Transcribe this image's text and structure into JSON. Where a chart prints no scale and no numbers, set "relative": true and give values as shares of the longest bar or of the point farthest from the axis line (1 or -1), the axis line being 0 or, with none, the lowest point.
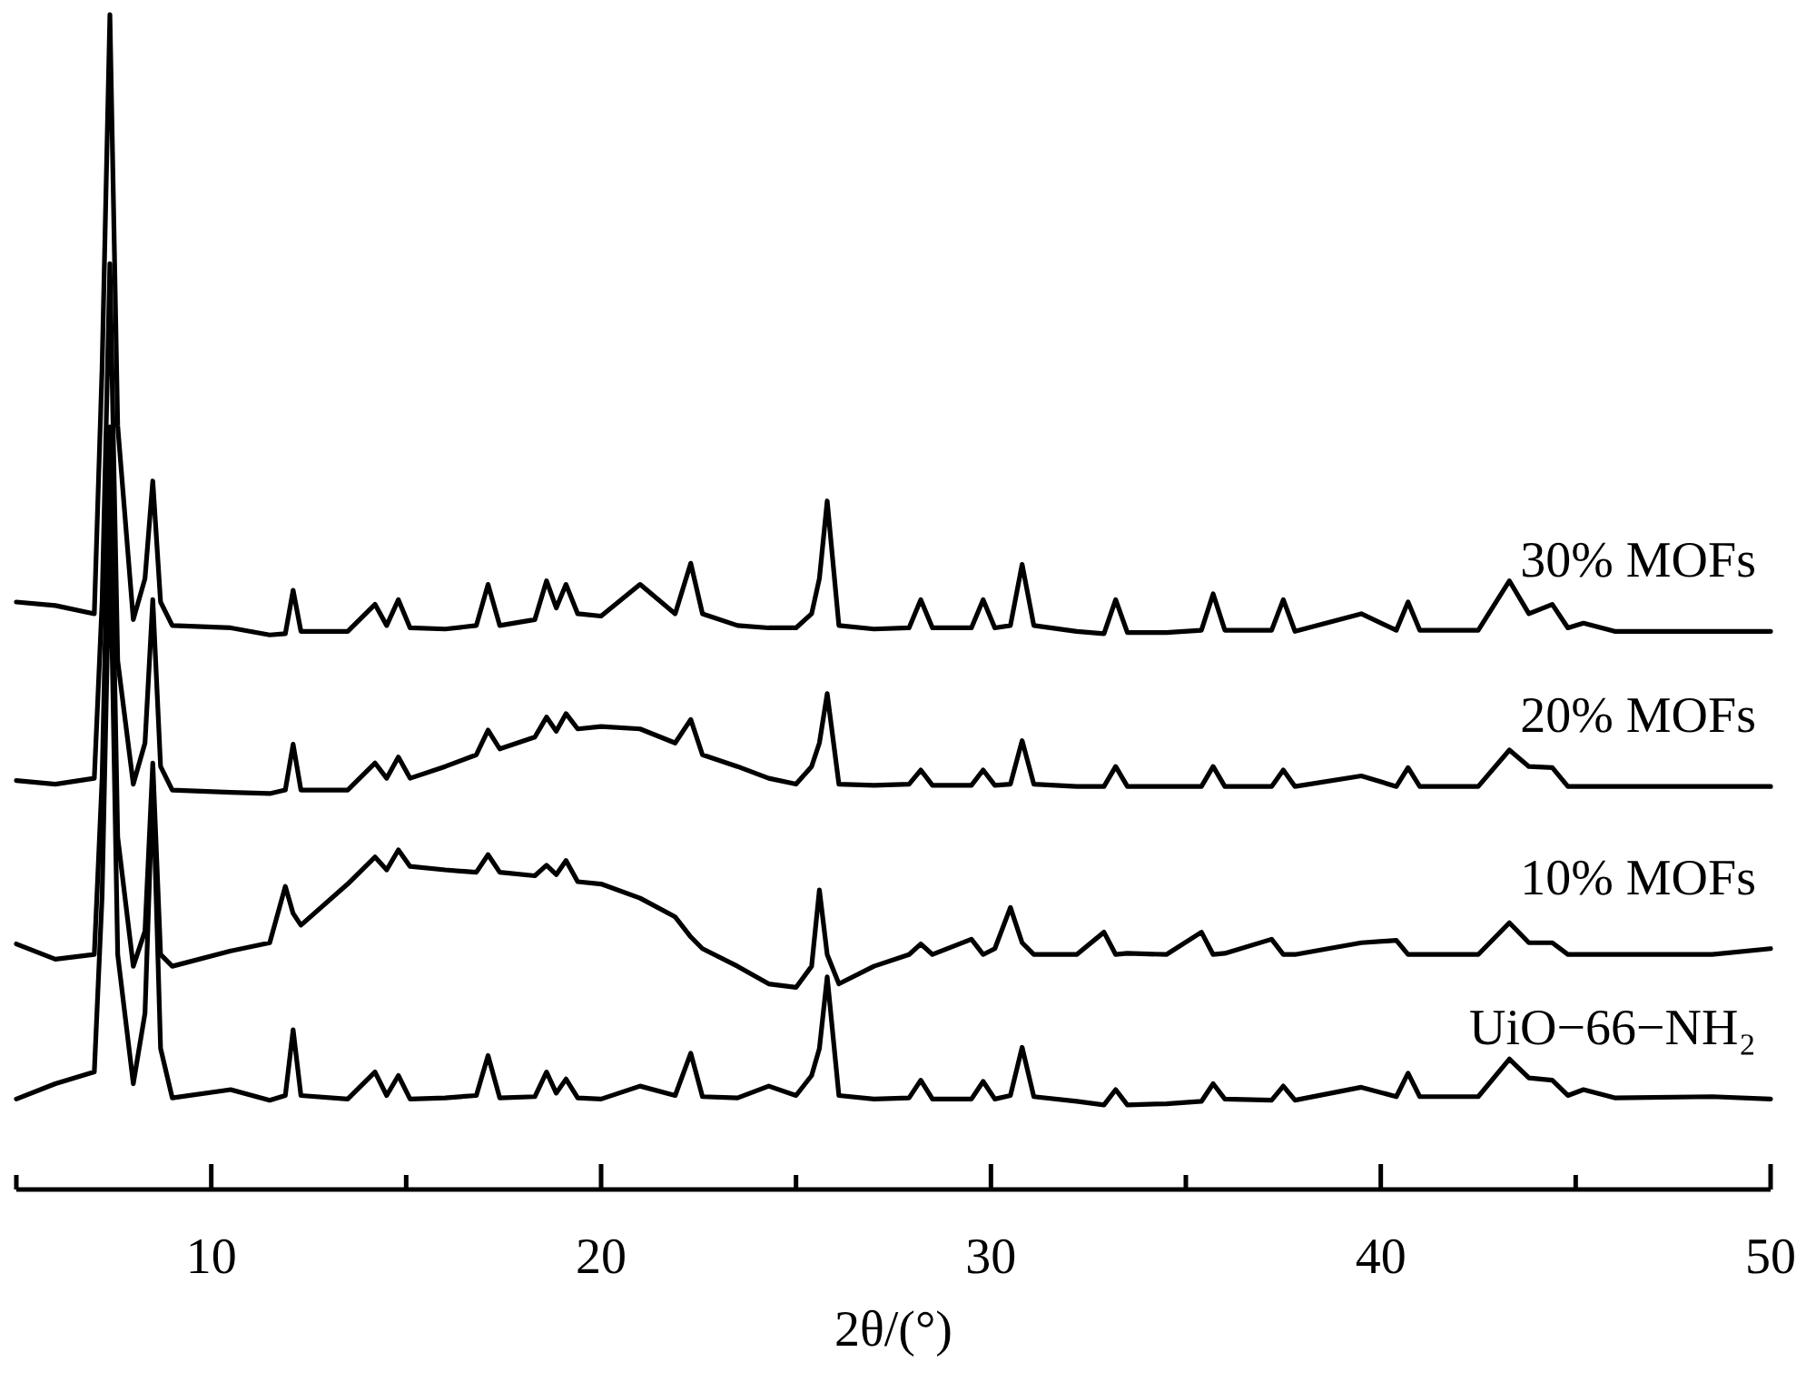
{
  "chart_data": {
    "type": "line",
    "relative": true,
    "xlabel": "2θ/(°)",
    "xlim": [
      5,
      50
    ],
    "xticks": [
      {
        "value": 5,
        "label": null
      },
      10,
      {
        "value": 15,
        "label": null
      },
      20,
      {
        "value": 25,
        "label": null
      },
      30,
      {
        "value": 35,
        "label": null
      },
      40,
      {
        "value": 45,
        "label": null
      },
      50
    ],
    "x": [
      5,
      6,
      7,
      7.2,
      7.4,
      7.6,
      8,
      8.3,
      8.5,
      8.7,
      9,
      10.5,
      11.5,
      11.9,
      12.1,
      12.3,
      13.5,
      14.2,
      14.5,
      14.8,
      15.1,
      16,
      16.8,
      17.1,
      17.4,
      18.3,
      18.6,
      18.85,
      19.1,
      19.4,
      20,
      21,
      21.9,
      22.3,
      22.6,
      23.5,
      24.3,
      25,
      25.4,
      25.6,
      25.8,
      26.1,
      27,
      27.9,
      28.2,
      28.5,
      29.5,
      29.8,
      30.1,
      30.5,
      30.8,
      31.1,
      32.2,
      32.9,
      33.2,
      33.5,
      34.5,
      35.4,
      35.7,
      36,
      37.2,
      37.5,
      37.8,
      39.5,
      40.4,
      40.7,
      41,
      42.5,
      43.3,
      43.8,
      44.4,
      44.8,
      45.2,
      46,
      48.5,
      50
    ],
    "legend": false,
    "grid": false,
    "line_style": "solid",
    "marker": "none",
    "series": [
      {
        "name": "30% MOFs",
        "color": "#000000",
        "values": [
          0.5,
          0.497,
          0.49,
          0.7,
          1.0,
          0.65,
          0.485,
          0.52,
          0.603,
          0.5,
          0.48,
          0.478,
          0.472,
          0.473,
          0.51,
          0.475,
          0.475,
          0.498,
          0.48,
          0.502,
          0.478,
          0.477,
          0.48,
          0.515,
          0.48,
          0.485,
          0.518,
          0.495,
          0.515,
          0.49,
          0.488,
          0.515,
          0.49,
          0.533,
          0.49,
          0.48,
          0.478,
          0.478,
          0.49,
          0.52,
          0.586,
          0.48,
          0.477,
          0.478,
          0.502,
          0.478,
          0.478,
          0.502,
          0.478,
          0.48,
          0.532,
          0.48,
          0.475,
          0.473,
          0.502,
          0.474,
          0.474,
          0.476,
          0.507,
          0.476,
          0.476,
          0.502,
          0.475,
          0.49,
          0.476,
          0.5,
          0.476,
          0.476,
          0.518,
          0.49,
          0.498,
          0.478,
          0.482,
          0.475,
          0.475,
          0.475
        ]
      },
      {
        "name": "20% MOFs",
        "color": "#000000",
        "values": [
          0.348,
          0.345,
          0.35,
          0.5,
          0.788,
          0.45,
          0.345,
          0.38,
          0.502,
          0.36,
          0.34,
          0.338,
          0.337,
          0.34,
          0.379,
          0.34,
          0.34,
          0.363,
          0.35,
          0.368,
          0.35,
          0.36,
          0.37,
          0.391,
          0.375,
          0.385,
          0.402,
          0.39,
          0.405,
          0.392,
          0.394,
          0.392,
          0.38,
          0.4,
          0.37,
          0.36,
          0.35,
          0.345,
          0.36,
          0.38,
          0.422,
          0.345,
          0.344,
          0.345,
          0.357,
          0.344,
          0.344,
          0.357,
          0.344,
          0.345,
          0.382,
          0.345,
          0.343,
          0.343,
          0.36,
          0.343,
          0.343,
          0.343,
          0.36,
          0.343,
          0.343,
          0.357,
          0.343,
          0.352,
          0.343,
          0.359,
          0.343,
          0.343,
          0.374,
          0.36,
          0.359,
          0.343,
          0.343,
          0.343,
          0.343,
          0.343
        ]
      },
      {
        "name": "10% MOFs",
        "color": "#000000",
        "values": [
          0.209,
          0.196,
          0.2,
          0.35,
          0.649,
          0.3,
          0.19,
          0.22,
          0.363,
          0.2,
          0.19,
          0.203,
          0.21,
          0.258,
          0.235,
          0.225,
          0.26,
          0.283,
          0.272,
          0.289,
          0.275,
          0.272,
          0.27,
          0.285,
          0.27,
          0.267,
          0.276,
          0.268,
          0.28,
          0.262,
          0.26,
          0.248,
          0.232,
          0.215,
          0.205,
          0.19,
          0.175,
          0.172,
          0.19,
          0.255,
          0.2,
          0.175,
          0.19,
          0.2,
          0.209,
          0.2,
          0.213,
          0.2,
          0.205,
          0.24,
          0.21,
          0.2,
          0.2,
          0.219,
          0.2,
          0.201,
          0.2,
          0.219,
          0.2,
          0.201,
          0.213,
          0.2,
          0.2,
          0.21,
          0.212,
          0.2,
          0.2,
          0.2,
          0.227,
          0.21,
          0.21,
          0.2,
          0.2,
          0.2,
          0.2,
          0.205
        ]
      },
      {
        "name": "UiO−66−NH₂",
        "color": "#000000",
        "values": [
          0.077,
          0.09,
          0.1,
          0.25,
          0.564,
          0.2,
          0.09,
          0.15,
          0.348,
          0.12,
          0.078,
          0.085,
          0.076,
          0.08,
          0.136,
          0.08,
          0.077,
          0.1,
          0.08,
          0.097,
          0.077,
          0.078,
          0.08,
          0.114,
          0.078,
          0.079,
          0.1,
          0.082,
          0.094,
          0.078,
          0.077,
          0.088,
          0.08,
          0.116,
          0.079,
          0.078,
          0.088,
          0.08,
          0.097,
          0.12,
          0.181,
          0.08,
          0.077,
          0.078,
          0.093,
          0.077,
          0.077,
          0.092,
          0.077,
          0.08,
          0.121,
          0.079,
          0.075,
          0.072,
          0.085,
          0.072,
          0.073,
          0.075,
          0.09,
          0.077,
          0.076,
          0.088,
          0.076,
          0.087,
          0.079,
          0.099,
          0.079,
          0.079,
          0.111,
          0.095,
          0.093,
          0.08,
          0.085,
          0.078,
          0.079,
          0.077
        ]
      }
    ]
  }
}
